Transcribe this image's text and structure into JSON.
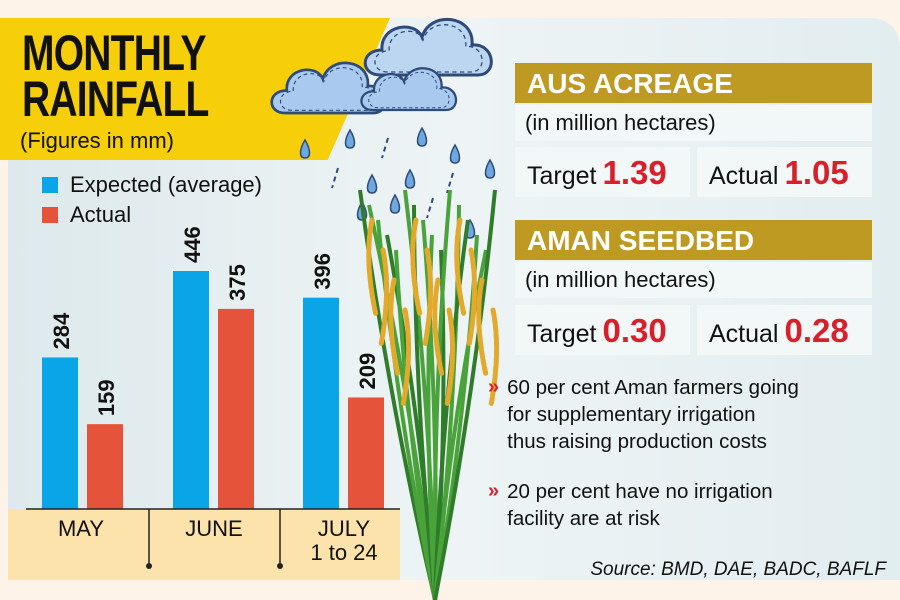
{
  "title": {
    "line1": "MONTHLY",
    "line2": "RAINFALL",
    "subtitle": "(Figures in mm)"
  },
  "chart_data": {
    "type": "bar",
    "categories": [
      "MAY",
      "JUNE",
      "JULY 1 to 24"
    ],
    "category_lines": [
      [
        "MAY"
      ],
      [
        "JUNE"
      ],
      [
        "JULY",
        "1 to 24"
      ]
    ],
    "series": [
      {
        "name": "Expected (average)",
        "color": "#0aa5e6",
        "values": [
          284,
          446,
          396
        ]
      },
      {
        "name": "Actual",
        "color": "#e5533a",
        "values": [
          159,
          375,
          209
        ]
      }
    ],
    "legend": "top-left",
    "grid": false,
    "ylim": [
      0,
      446
    ]
  },
  "aus": {
    "title": "AUS ACREAGE",
    "unit": "(in million hectares)",
    "target_label": "Target",
    "target_value": "1.39",
    "actual_label": "Actual",
    "actual_value": "1.05"
  },
  "aman": {
    "title": "AMAN SEEDBED",
    "unit": "(in million hectares)",
    "target_label": "Target",
    "target_value": "0.30",
    "actual_label": "Actual",
    "actual_value": "0.28"
  },
  "bullets": [
    {
      "icon": "chevron-right-double",
      "lines": [
        "60 per cent Aman farmers going",
        "for supplementary irrigation",
        "thus raising production costs"
      ]
    },
    {
      "icon": "chevron-right-double",
      "lines": [
        "20 per cent have no irrigation",
        "facility are at risk"
      ]
    }
  ],
  "source": "Source: BMD, DAE, BADC, BAFLF",
  "colors": {
    "title_bg": "#f6cf0a",
    "box_header": "#bf9a23",
    "value_red": "#d81f2a",
    "axis_band": "#fbe3ab"
  }
}
